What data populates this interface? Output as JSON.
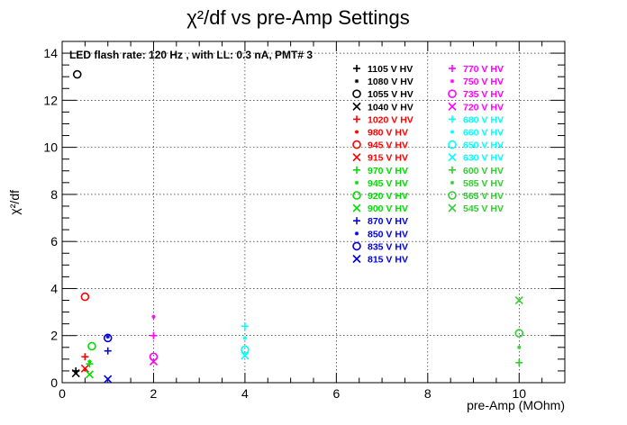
{
  "chart_data": {
    "type": "scatter",
    "title": "χ²/df vs pre-Amp Settings",
    "xlabel": "pre-Amp (MOhm)",
    "ylabel": "χ²/df",
    "annotation": "LED flash rate: 120 Hz , with LL: 0.3 nA, PMT# 3",
    "xlim": [
      0,
      11
    ],
    "ylim": [
      0,
      14.5
    ],
    "xticks": [
      "0",
      "2",
      "4",
      "6",
      "8",
      "10"
    ],
    "yticks": [
      "0",
      "2",
      "4",
      "6",
      "8",
      "10",
      "12",
      "14"
    ],
    "grid": true,
    "legend_position": "upper-right",
    "series": [
      {
        "name": "1105 V HV",
        "color": "#000000",
        "marker": "plus",
        "points": [
          [
            0.3,
            0.5
          ]
        ]
      },
      {
        "name": "1080 V HV",
        "color": "#000000",
        "marker": "asterisk",
        "points": [
          [
            0.3,
            0.45
          ]
        ]
      },
      {
        "name": "1055 V HV",
        "color": "#000000",
        "marker": "circle",
        "points": [
          [
            0.33,
            13.1
          ]
        ]
      },
      {
        "name": "1040 V HV",
        "color": "#000000",
        "marker": "x",
        "points": [
          [
            0.3,
            0.4
          ]
        ]
      },
      {
        "name": "1020 V HV",
        "color": "#ff0000",
        "marker": "plus",
        "points": [
          [
            0.5,
            1.1
          ]
        ]
      },
      {
        "name": "980 V HV",
        "color": "#ff0000",
        "marker": "asterisk",
        "points": [
          [
            0.5,
            0.55
          ]
        ]
      },
      {
        "name": "945 V HV",
        "color": "#ff0000",
        "marker": "circle",
        "points": [
          [
            0.5,
            3.65
          ]
        ]
      },
      {
        "name": "915 V HV",
        "color": "#ff0000",
        "marker": "x",
        "points": [
          [
            0.5,
            0.6
          ]
        ]
      },
      {
        "name": "970 V HV",
        "color": "#00dd00",
        "marker": "plus",
        "points": [
          [
            0.6,
            0.8
          ]
        ]
      },
      {
        "name": "945 V HV",
        "color": "#00dd00",
        "marker": "asterisk",
        "points": [
          [
            0.6,
            0.9
          ]
        ]
      },
      {
        "name": "920 V HV",
        "color": "#00dd00",
        "marker": "circle",
        "points": [
          [
            0.65,
            1.55
          ]
        ]
      },
      {
        "name": "900 V HV",
        "color": "#00dd00",
        "marker": "x",
        "points": [
          [
            0.6,
            0.35
          ]
        ]
      },
      {
        "name": "870 V HV",
        "color": "#0000dd",
        "marker": "plus",
        "points": [
          [
            1.0,
            1.35
          ]
        ]
      },
      {
        "name": "850 V HV",
        "color": "#0000dd",
        "marker": "asterisk",
        "points": [
          [
            1.0,
            1.95
          ]
        ]
      },
      {
        "name": "835 V HV",
        "color": "#0000dd",
        "marker": "circle",
        "points": [
          [
            1.0,
            1.9
          ]
        ]
      },
      {
        "name": "815 V HV",
        "color": "#0000dd",
        "marker": "x",
        "points": [
          [
            1.0,
            0.15
          ]
        ]
      },
      {
        "name": "770 V HV",
        "color": "#ff00ff",
        "marker": "plus",
        "points": [
          [
            2.0,
            2.0
          ]
        ]
      },
      {
        "name": "750 V HV",
        "color": "#ff00ff",
        "marker": "asterisk",
        "points": [
          [
            2.0,
            2.8
          ]
        ]
      },
      {
        "name": "735 V HV",
        "color": "#ff00ff",
        "marker": "circle",
        "points": [
          [
            2.0,
            1.1
          ]
        ]
      },
      {
        "name": "720 V HV",
        "color": "#ff00ff",
        "marker": "x",
        "points": [
          [
            2.0,
            0.9
          ]
        ]
      },
      {
        "name": "680 V HV",
        "color": "#00ffff",
        "marker": "plus",
        "points": [
          [
            4.0,
            2.4
          ]
        ]
      },
      {
        "name": "660 V HV",
        "color": "#00ffff",
        "marker": "asterisk",
        "points": [
          [
            4.0,
            1.9
          ]
        ]
      },
      {
        "name": "650 V HV",
        "color": "#00ffff",
        "marker": "circle",
        "points": [
          [
            4.0,
            1.4
          ]
        ]
      },
      {
        "name": "630 V HV",
        "color": "#00ffff",
        "marker": "x",
        "points": [
          [
            4.0,
            1.15
          ]
        ]
      },
      {
        "name": "600 V HV",
        "color": "#33cc33",
        "marker": "plus",
        "points": [
          [
            10.0,
            0.85
          ]
        ]
      },
      {
        "name": "585 V HV",
        "color": "#33cc33",
        "marker": "asterisk",
        "points": [
          [
            10.0,
            1.5
          ]
        ]
      },
      {
        "name": "565 V HV",
        "color": "#33cc33",
        "marker": "circle",
        "points": [
          [
            10.0,
            2.1
          ]
        ]
      },
      {
        "name": "545 V HV",
        "color": "#33cc33",
        "marker": "x",
        "points": [
          [
            10.0,
            3.5
          ]
        ]
      }
    ]
  }
}
